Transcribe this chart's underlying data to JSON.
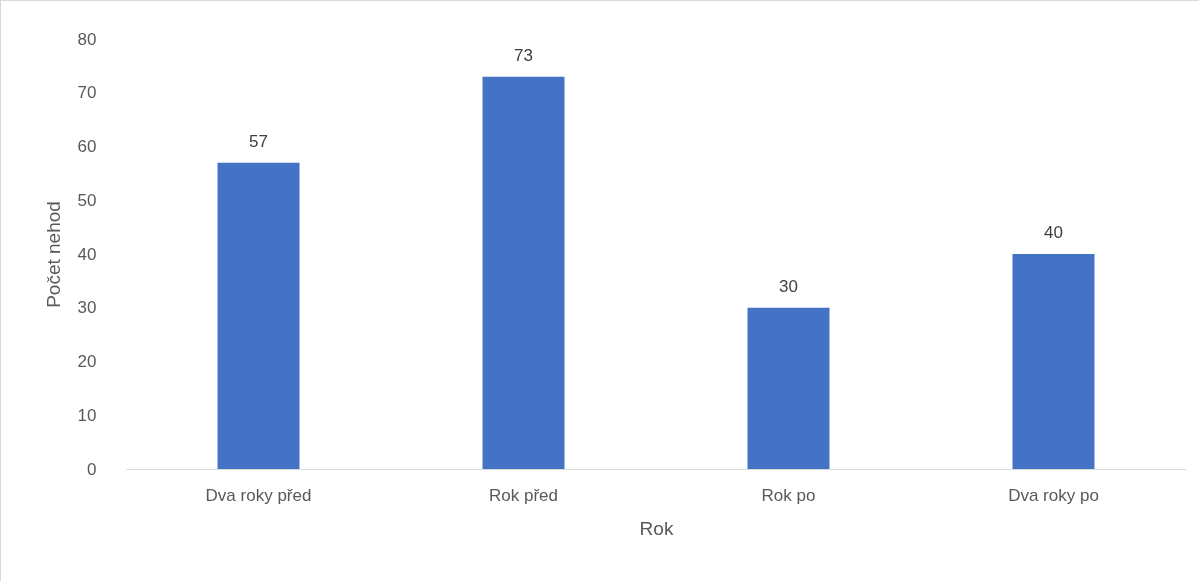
{
  "chart_data": {
    "type": "bar",
    "xlabel": "Rok",
    "ylabel": "Počet nehod",
    "categories": [
      "Dva roky před",
      "Rok před",
      "Rok po",
      "Dva roky po"
    ],
    "values": [
      57,
      73,
      30,
      40
    ],
    "color": "#4472c4",
    "ylim": [
      0,
      80
    ],
    "yticks": [
      0,
      10,
      20,
      30,
      40,
      50,
      60,
      70,
      80
    ],
    "grid": false,
    "data_labels": true
  }
}
